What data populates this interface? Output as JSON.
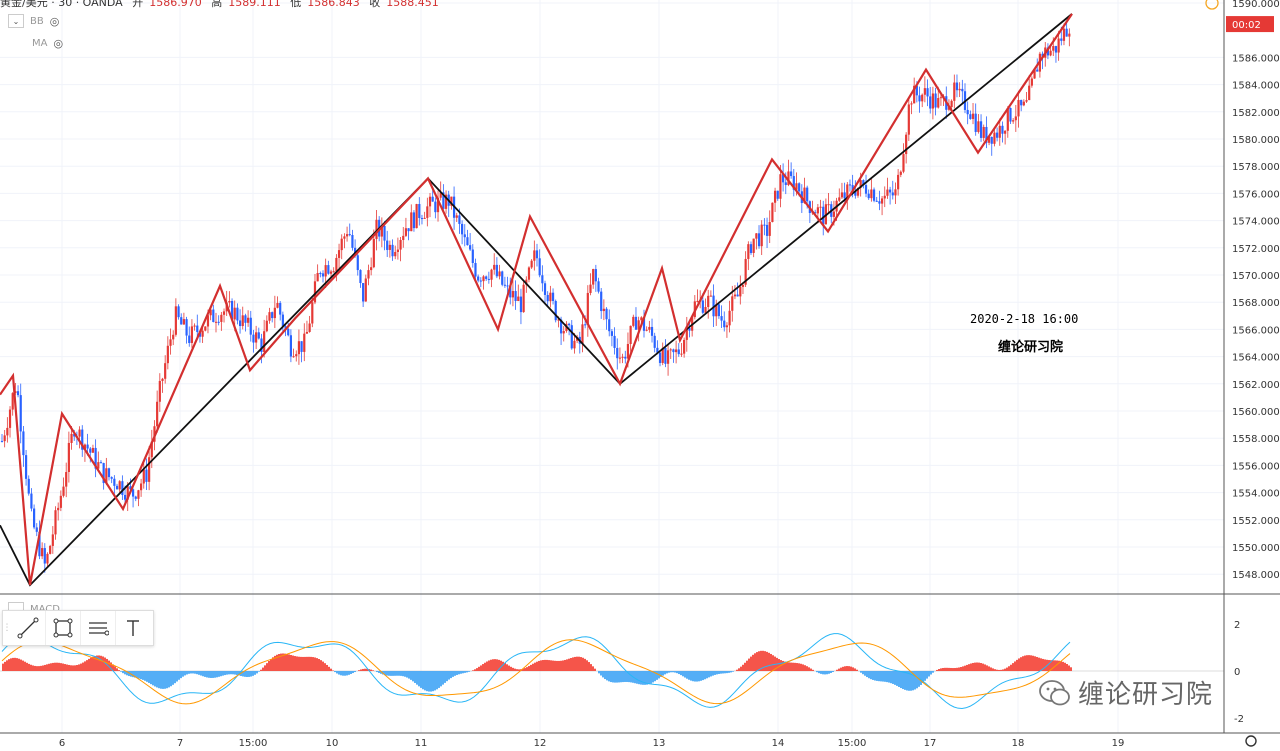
{
  "header": {
    "title": "黄金/美元 · 30 · OANDA",
    "open_label": "开",
    "open_value": "1586.970",
    "high_label": "高",
    "high_value": "1589.111",
    "low_label": "低",
    "low_value": "1586.843",
    "close_label": "收",
    "close_value": "1588.451"
  },
  "indicators": {
    "bb": "BB",
    "ma": "MA",
    "macd": "MACD"
  },
  "price_badge": "00:02",
  "annotation": {
    "datetime": "2020-2-18  16:00",
    "brand": "缠论研习院"
  },
  "watermark": "缠论研习院",
  "colors": {
    "up": "#e53935",
    "down": "#2962ff",
    "pen": "#d32f2f",
    "segment": "#111111",
    "macd_pos": "#f44336",
    "macd_neg": "#42a5f5",
    "dif": "#29b6f6",
    "dea": "#ff9800"
  },
  "chart_data": [
    {
      "type": "line",
      "name": "price",
      "y_ticks": [
        "1590.000",
        "1586.000",
        "1584.000",
        "1582.000",
        "1580.000",
        "1578.000",
        "1576.000",
        "1574.000",
        "1572.000",
        "1570.000",
        "1568.000",
        "1566.000",
        "1564.000",
        "1562.000",
        "1560.000",
        "1558.000",
        "1556.000",
        "1554.000",
        "1552.000",
        "1550.000",
        "1548.000"
      ],
      "ylim": [
        1546.0,
        1590.4
      ],
      "x_ticks": [
        "6",
        "7",
        "15:00",
        "10",
        "11",
        "12",
        "13",
        "14",
        "15:00",
        "17",
        "18",
        "19"
      ],
      "red_pen_path": [
        [
          0,
          1561.2
        ],
        [
          13,
          1562.6
        ],
        [
          30,
          1547.2
        ],
        [
          62,
          1559.8
        ],
        [
          123,
          1552.8
        ],
        [
          220,
          1569.2
        ],
        [
          250,
          1563.0
        ],
        [
          295,
          1566.8
        ],
        [
          428,
          1577.1
        ],
        [
          498,
          1566.0
        ],
        [
          530,
          1574.3
        ],
        [
          620,
          1562.0
        ],
        [
          662,
          1570.5
        ],
        [
          680,
          1565.2
        ],
        [
          772,
          1578.5
        ],
        [
          828,
          1573.2
        ],
        [
          926,
          1585.1
        ],
        [
          978,
          1579.0
        ],
        [
          1072,
          1589.2
        ]
      ],
      "segment_path": [
        [
          0,
          1551.6
        ],
        [
          30,
          1547.2
        ],
        [
          428,
          1577.1
        ],
        [
          620,
          1562.0
        ],
        [
          1072,
          1589.2
        ]
      ],
      "price_series": [
        1557.8,
        1562.2,
        1552.2,
        1548.5,
        1553.4,
        1558.9,
        1557.2,
        1555.4,
        1554.8,
        1553.8,
        1555.3,
        1561.8,
        1567.0,
        1565.4,
        1566.4,
        1567.3,
        1567.4,
        1566.2,
        1564.9,
        1568.1,
        1564.8,
        1564.9,
        1570.5,
        1570.9,
        1573.6,
        1568.2,
        1573.5,
        1571.9,
        1573.6,
        1574.7,
        1575.2,
        1575.5,
        1572.6,
        1570.0,
        1570.4,
        1568.8,
        1567.9,
        1571.6,
        1568.1,
        1566.0,
        1564.6,
        1570.1,
        1566.1,
        1563.7,
        1566.9,
        1565.6,
        1563.5,
        1564.5,
        1567.8,
        1568.1,
        1566.6,
        1568.4,
        1572.6,
        1573.1,
        1577.1,
        1576.8,
        1575.2,
        1574.3,
        1575.4,
        1576.4,
        1576.5,
        1575.6,
        1576.0,
        1583.2,
        1583.3,
        1582.5,
        1583.4,
        1582.4,
        1580.2,
        1580.5,
        1581.9,
        1582.3,
        1586.3,
        1586.6,
        1588.5
      ],
      "price_x_start": 2,
      "price_x_end": 1072
    },
    {
      "type": "area",
      "name": "MACD",
      "y_ticks": [
        "2",
        "0",
        "-2"
      ],
      "ylim": [
        -2.8,
        2.8
      ]
    }
  ]
}
